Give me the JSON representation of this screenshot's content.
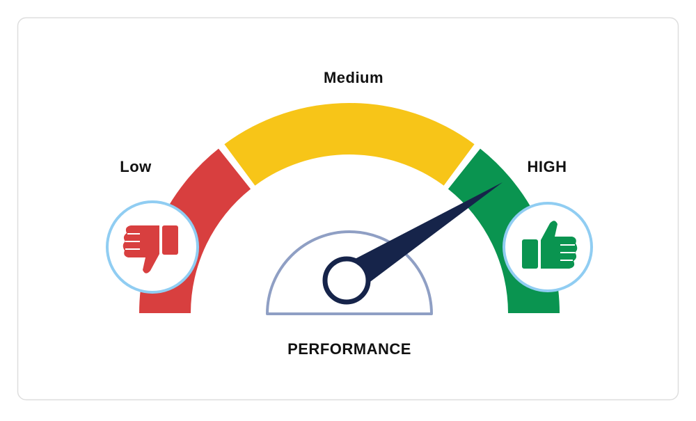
{
  "gauge": {
    "low_label": "Low",
    "medium_label": "Medium",
    "high_label": "HIGH",
    "caption": "PERFORMANCE"
  }
}
